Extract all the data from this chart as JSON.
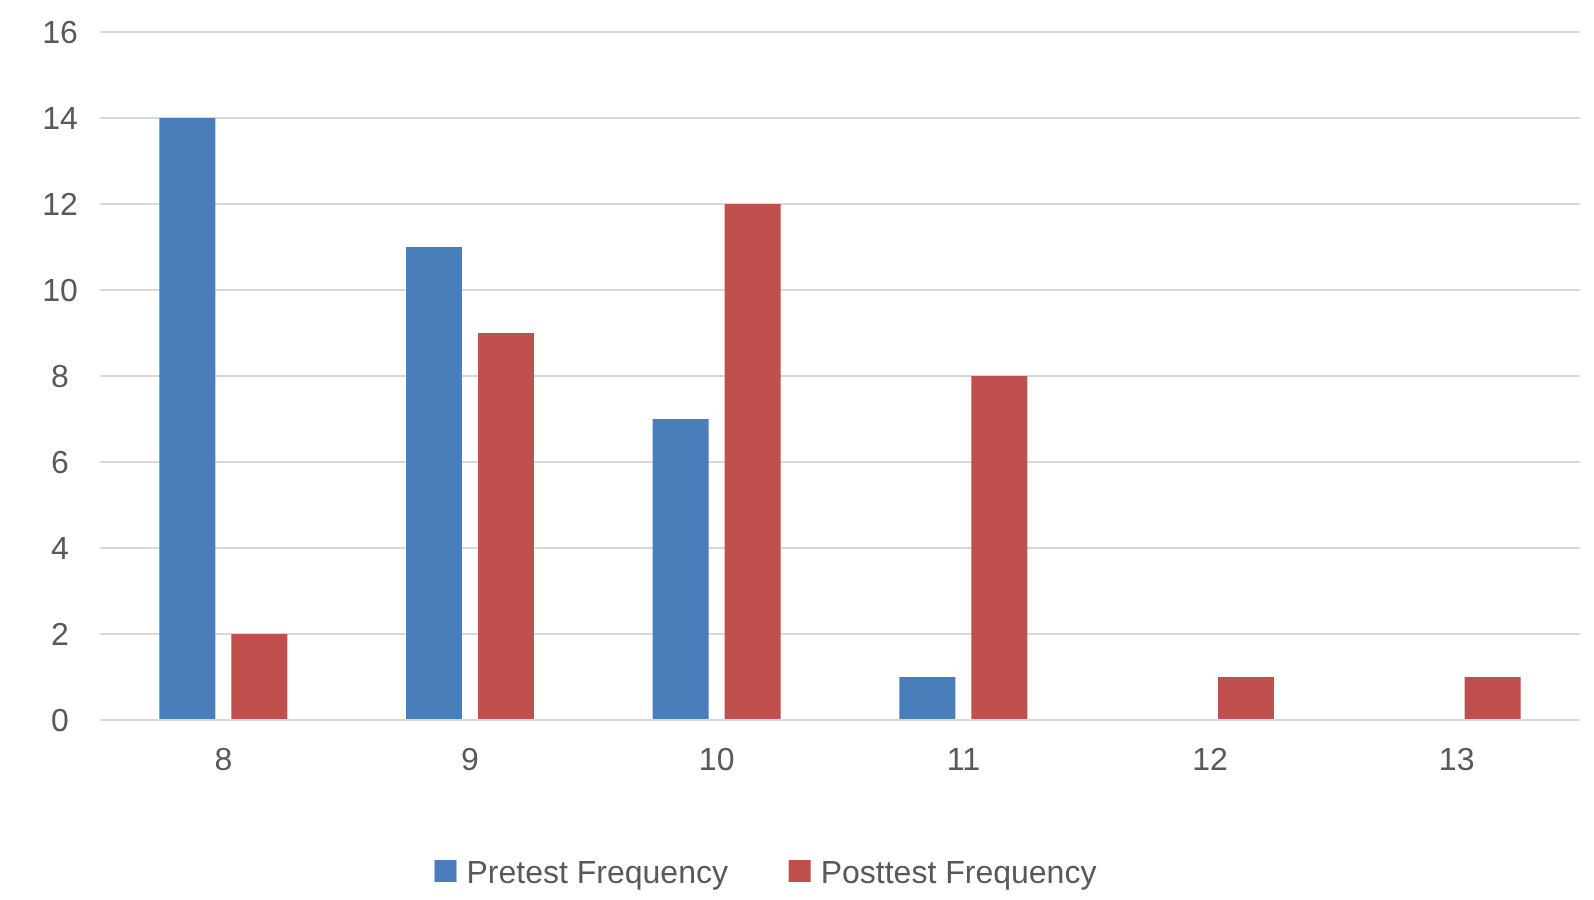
{
  "chart_data": {
    "type": "bar",
    "categories": [
      "8",
      "9",
      "10",
      "11",
      "12",
      "13"
    ],
    "series": [
      {
        "name": "Pretest Frequency",
        "color": "#4a7ebb",
        "values": [
          14,
          11,
          7,
          1,
          0,
          0
        ]
      },
      {
        "name": "Posttest Frequency",
        "color": "#c0504d",
        "values": [
          2,
          9,
          12,
          8,
          1,
          1
        ]
      }
    ],
    "ylim": [
      0,
      16
    ],
    "yticks": [
      0,
      2,
      4,
      6,
      8,
      10,
      12,
      14,
      16
    ],
    "grid": "y",
    "legend": "bottom"
  }
}
